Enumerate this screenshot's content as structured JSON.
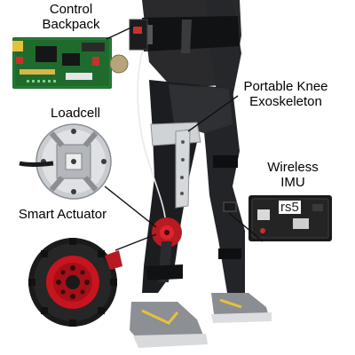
{
  "labels": {
    "control_backpack": [
      "Control",
      "Backpack"
    ],
    "portable_knee_exoskeleton": [
      "Portable Knee",
      "Exoskeleton"
    ],
    "loadcell": "Loadcell",
    "wireless_imu": [
      "Wireless",
      "IMU"
    ],
    "smart_actuator": "Smart Actuator"
  },
  "imu_board_marking": "rs5",
  "colors": {
    "pcb_green": "#1f6b2e",
    "actuator_red": "#c8141e",
    "actuator_black": "#1a1a1a",
    "leader_line": "#111111",
    "exo_silver": "#cfd3d6"
  }
}
